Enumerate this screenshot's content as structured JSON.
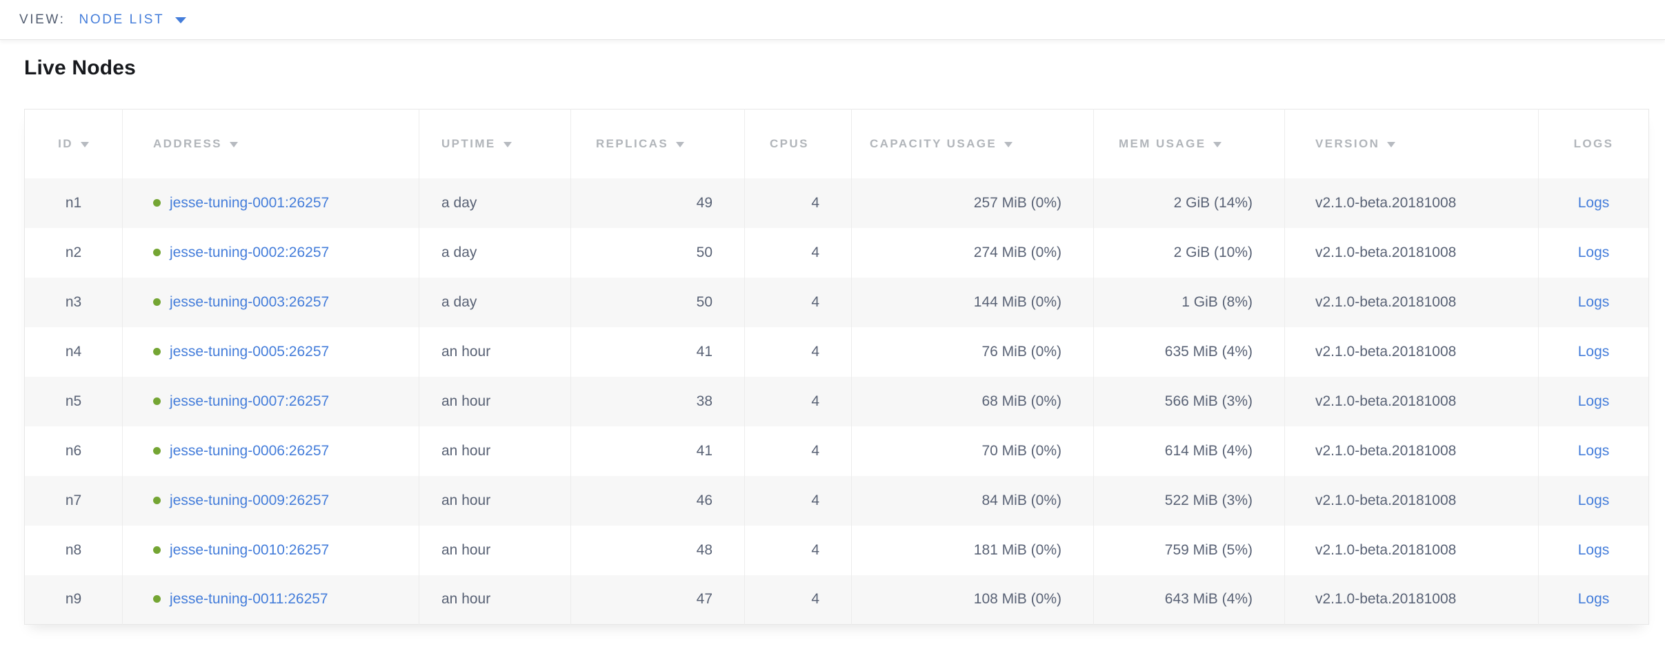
{
  "view_bar": {
    "label": "VIEW:",
    "selected_view": "NODE LIST"
  },
  "page": {
    "title": "Live Nodes"
  },
  "colors": {
    "link_blue": "#447dda",
    "healthy_green": "#74a533",
    "header_gray": "#b1b5ba",
    "cell_text": "#596275",
    "row_stripe": "#f7f7f7",
    "border": "#ececec"
  },
  "table": {
    "columns": [
      {
        "key": "id",
        "label": "ID",
        "sortable": true,
        "align": "center",
        "class": "col-id"
      },
      {
        "key": "address",
        "label": "ADDRESS",
        "sortable": true,
        "align": "left",
        "class": "col-address"
      },
      {
        "key": "uptime",
        "label": "UPTIME",
        "sortable": true,
        "align": "left",
        "class": "col-uptime"
      },
      {
        "key": "replicas",
        "label": "REPLICAS",
        "sortable": true,
        "align": "right",
        "class": "col-replicas"
      },
      {
        "key": "cpus",
        "label": "CPUS",
        "sortable": false,
        "align": "right",
        "class": "col-cpus"
      },
      {
        "key": "capacity",
        "label": "CAPACITY USAGE",
        "sortable": true,
        "align": "right",
        "class": "col-capacity"
      },
      {
        "key": "mem",
        "label": "MEM USAGE",
        "sortable": true,
        "align": "right",
        "class": "col-mem"
      },
      {
        "key": "version",
        "label": "VERSION",
        "sortable": true,
        "align": "left",
        "class": "col-version"
      },
      {
        "key": "logs",
        "label": "LOGS",
        "sortable": false,
        "align": "center",
        "class": "col-logs"
      }
    ],
    "rows": [
      {
        "id": "n1",
        "address": "jesse-tuning-0001:26257",
        "status": "healthy",
        "uptime": "a day",
        "replicas": "49",
        "cpus": "4",
        "capacity": "257 MiB (0%)",
        "mem": "2 GiB (14%)",
        "version": "v2.1.0-beta.20181008",
        "logs": "Logs"
      },
      {
        "id": "n2",
        "address": "jesse-tuning-0002:26257",
        "status": "healthy",
        "uptime": "a day",
        "replicas": "50",
        "cpus": "4",
        "capacity": "274 MiB (0%)",
        "mem": "2 GiB (10%)",
        "version": "v2.1.0-beta.20181008",
        "logs": "Logs"
      },
      {
        "id": "n3",
        "address": "jesse-tuning-0003:26257",
        "status": "healthy",
        "uptime": "a day",
        "replicas": "50",
        "cpus": "4",
        "capacity": "144 MiB (0%)",
        "mem": "1 GiB (8%)",
        "version": "v2.1.0-beta.20181008",
        "logs": "Logs"
      },
      {
        "id": "n4",
        "address": "jesse-tuning-0005:26257",
        "status": "healthy",
        "uptime": "an hour",
        "replicas": "41",
        "cpus": "4",
        "capacity": "76 MiB (0%)",
        "mem": "635 MiB (4%)",
        "version": "v2.1.0-beta.20181008",
        "logs": "Logs"
      },
      {
        "id": "n5",
        "address": "jesse-tuning-0007:26257",
        "status": "healthy",
        "uptime": "an hour",
        "replicas": "38",
        "cpus": "4",
        "capacity": "68 MiB (0%)",
        "mem": "566 MiB (3%)",
        "version": "v2.1.0-beta.20181008",
        "logs": "Logs"
      },
      {
        "id": "n6",
        "address": "jesse-tuning-0006:26257",
        "status": "healthy",
        "uptime": "an hour",
        "replicas": "41",
        "cpus": "4",
        "capacity": "70 MiB (0%)",
        "mem": "614 MiB (4%)",
        "version": "v2.1.0-beta.20181008",
        "logs": "Logs"
      },
      {
        "id": "n7",
        "address": "jesse-tuning-0009:26257",
        "status": "healthy",
        "uptime": "an hour",
        "replicas": "46",
        "cpus": "4",
        "capacity": "84 MiB (0%)",
        "mem": "522 MiB (3%)",
        "version": "v2.1.0-beta.20181008",
        "logs": "Logs"
      },
      {
        "id": "n8",
        "address": "jesse-tuning-0010:26257",
        "status": "healthy",
        "uptime": "an hour",
        "replicas": "48",
        "cpus": "4",
        "capacity": "181 MiB (0%)",
        "mem": "759 MiB (5%)",
        "version": "v2.1.0-beta.20181008",
        "logs": "Logs"
      },
      {
        "id": "n9",
        "address": "jesse-tuning-0011:26257",
        "status": "healthy",
        "uptime": "an hour",
        "replicas": "47",
        "cpus": "4",
        "capacity": "108 MiB (0%)",
        "mem": "643 MiB (4%)",
        "version": "v2.1.0-beta.20181008",
        "logs": "Logs"
      }
    ]
  }
}
